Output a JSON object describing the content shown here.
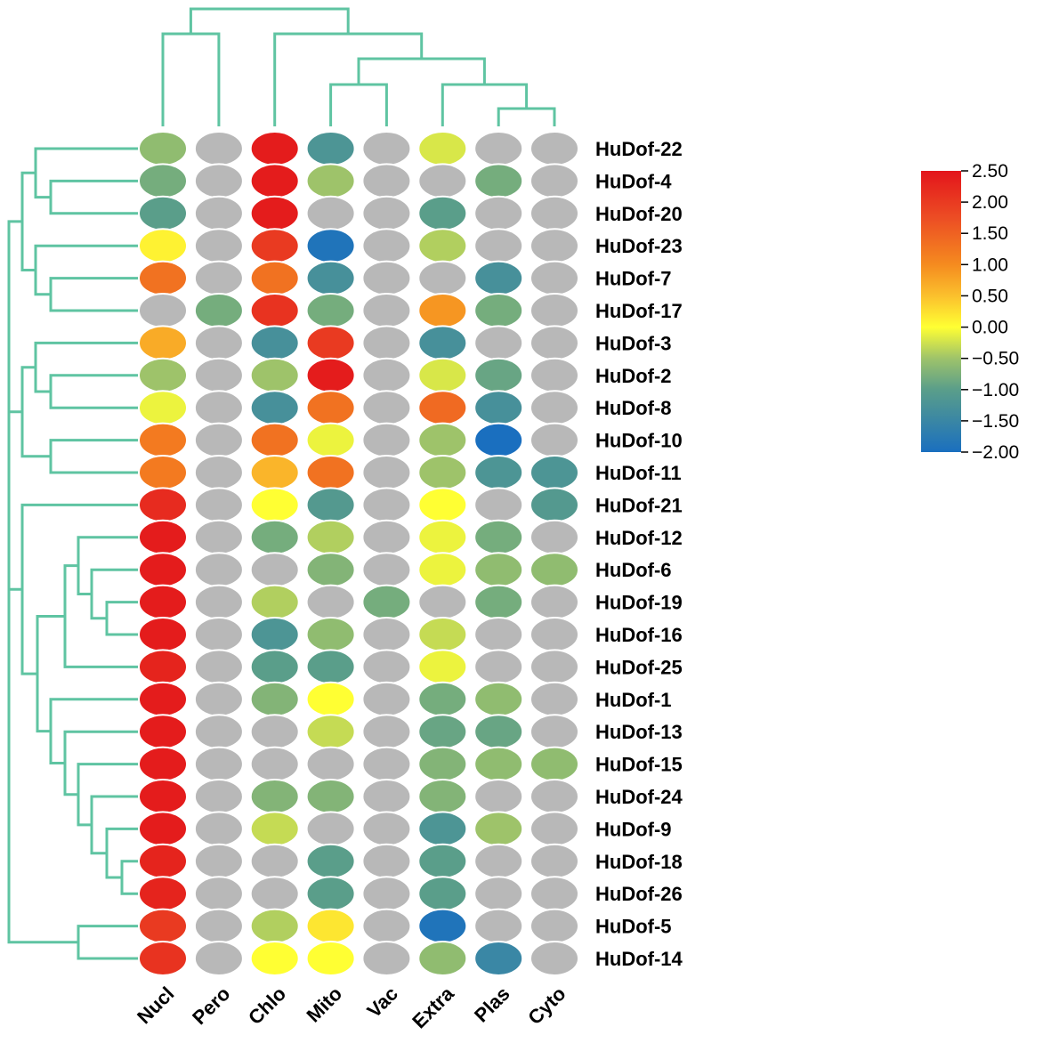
{
  "chart_data": {
    "type": "heatmap",
    "columns": [
      "Nucl",
      "Pero",
      "Chlo",
      "Mito",
      "Vac",
      "Extra",
      "Plas",
      "Cyto"
    ],
    "rows": [
      "HuDof-22",
      "HuDof-4",
      "HuDof-20",
      "HuDof-23",
      "HuDof-7",
      "HuDof-17",
      "HuDof-3",
      "HuDof-2",
      "HuDof-8",
      "HuDof-10",
      "HuDof-11",
      "HuDof-21",
      "HuDof-12",
      "HuDof-6",
      "HuDof-19",
      "HuDof-16",
      "HuDof-25",
      "HuDof-1",
      "HuDof-13",
      "HuDof-15",
      "HuDof-24",
      "HuDof-9",
      "HuDof-18",
      "HuDof-26",
      "HuDof-5",
      "HuDof-14"
    ],
    "values": [
      [
        -0.6,
        null,
        2.4,
        -1.2,
        null,
        -0.2,
        null,
        null
      ],
      [
        -0.8,
        null,
        2.4,
        -0.5,
        null,
        null,
        -0.8,
        null
      ],
      [
        -1.0,
        null,
        2.4,
        null,
        null,
        -1.0,
        null,
        null
      ],
      [
        0.1,
        null,
        2.0,
        -1.9,
        null,
        -0.4,
        null,
        null
      ],
      [
        1.3,
        null,
        1.3,
        -1.3,
        null,
        null,
        -1.3,
        null
      ],
      [
        null,
        -0.8,
        2.1,
        -0.8,
        null,
        0.9,
        -0.8,
        null
      ],
      [
        0.7,
        null,
        -1.3,
        2.0,
        null,
        -1.3,
        null,
        null
      ],
      [
        -0.5,
        null,
        -0.5,
        2.4,
        null,
        -0.2,
        -0.9,
        null
      ],
      [
        -0.1,
        null,
        -1.3,
        1.3,
        null,
        1.4,
        -1.3,
        null
      ],
      [
        1.2,
        null,
        1.3,
        -0.1,
        null,
        -0.5,
        -2.0,
        null
      ],
      [
        1.2,
        null,
        0.6,
        1.3,
        null,
        -0.5,
        -1.2,
        -1.2
      ],
      [
        2.2,
        null,
        0.0,
        -1.1,
        null,
        0.0,
        null,
        -1.1
      ],
      [
        2.4,
        null,
        -0.8,
        -0.4,
        null,
        -0.1,
        -0.8,
        null
      ],
      [
        2.4,
        null,
        null,
        -0.7,
        null,
        -0.1,
        -0.6,
        -0.6
      ],
      [
        2.4,
        null,
        -0.4,
        null,
        -0.8,
        null,
        -0.8,
        null
      ],
      [
        2.4,
        null,
        -1.2,
        -0.6,
        null,
        -0.3,
        null,
        null
      ],
      [
        2.3,
        null,
        -1.0,
        -1.0,
        null,
        -0.1,
        null,
        null
      ],
      [
        2.4,
        null,
        -0.7,
        0.0,
        null,
        -0.8,
        -0.6,
        null
      ],
      [
        2.4,
        null,
        null,
        -0.3,
        null,
        -0.9,
        -0.9,
        null
      ],
      [
        2.4,
        null,
        null,
        null,
        null,
        -0.7,
        -0.6,
        -0.6
      ],
      [
        2.4,
        null,
        -0.7,
        -0.7,
        null,
        -0.7,
        null,
        null
      ],
      [
        2.4,
        null,
        -0.3,
        null,
        null,
        -1.2,
        -0.5,
        null
      ],
      [
        2.3,
        null,
        null,
        -1.0,
        null,
        -1.0,
        null,
        null
      ],
      [
        2.3,
        null,
        null,
        -1.0,
        null,
        -1.0,
        null,
        null
      ],
      [
        2.0,
        null,
        -0.4,
        0.2,
        null,
        -1.9,
        null,
        null
      ],
      [
        2.1,
        null,
        0.0,
        0.0,
        null,
        -0.6,
        -1.5,
        null
      ]
    ],
    "missing_color": "#b8b8b8",
    "color_scale": {
      "min": -2.0,
      "max": 2.5,
      "stops": [
        {
          "value": -2.0,
          "color": "#1a6fbf"
        },
        {
          "value": -1.0,
          "color": "#5a9e8a"
        },
        {
          "value": -0.5,
          "color": "#9ec36a"
        },
        {
          "value": 0.0,
          "color": "#ffff33"
        },
        {
          "value": 0.5,
          "color": "#fbc02d"
        },
        {
          "value": 1.0,
          "color": "#f58b1f"
        },
        {
          "value": 1.75,
          "color": "#ec4d24"
        },
        {
          "value": 2.5,
          "color": "#e3151b"
        }
      ],
      "ticks": [
        "2.50",
        "2.00",
        "1.50",
        "1.00",
        "0.50",
        "0.00",
        "−0.50",
        "−1.00",
        "−1.50",
        "−2.00"
      ]
    },
    "column_dendrogram": true,
    "row_dendrogram": true,
    "dendrogram_color": "#5fc4a2",
    "legend_position": "right"
  }
}
